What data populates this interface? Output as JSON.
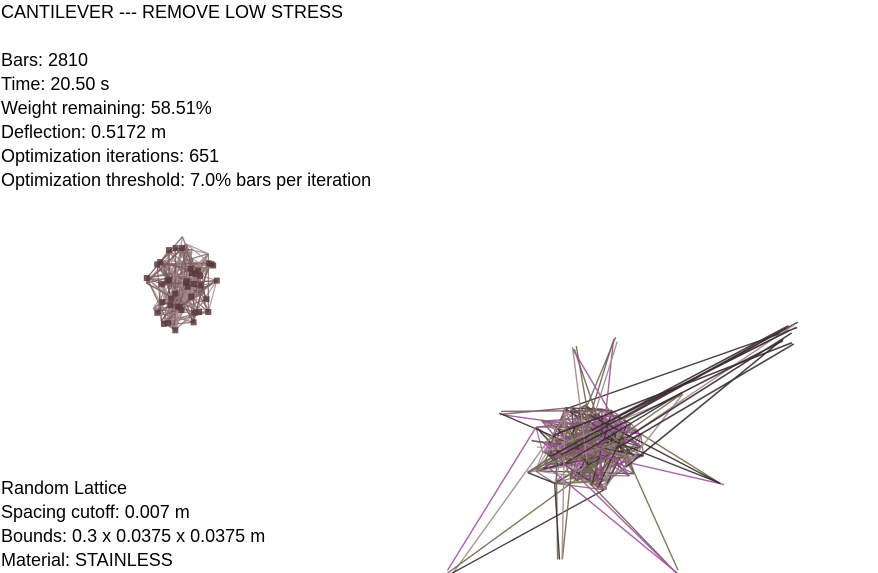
{
  "title": "CANTILEVER --- REMOVE LOW STRESS",
  "stats": {
    "bars": "Bars: 2810",
    "time": "Time: 20.50 s",
    "weight": "Weight remaining: 58.51%",
    "deflection": "Deflection: 0.5172 m",
    "iterations": "Optimization iterations: 651",
    "threshold": "Optimization threshold: 7.0% bars per iteration"
  },
  "lattice": {
    "type": "Random Lattice",
    "spacing": "Spacing cutoff: 0.007 m",
    "bounds": "Bounds: 0.3 x 0.0375 x 0.0375 m",
    "material": "Material: STAINLESS"
  },
  "colors": {
    "background": "#ffffff",
    "text": "#000000",
    "bar_main": "#7a5a5a",
    "bar_light": "#a08a88",
    "bar_green": "#6b6b4a",
    "bar_magenta": "#a050a0",
    "bar_dark": "#3a2c30",
    "node": "#5a3a3c"
  }
}
